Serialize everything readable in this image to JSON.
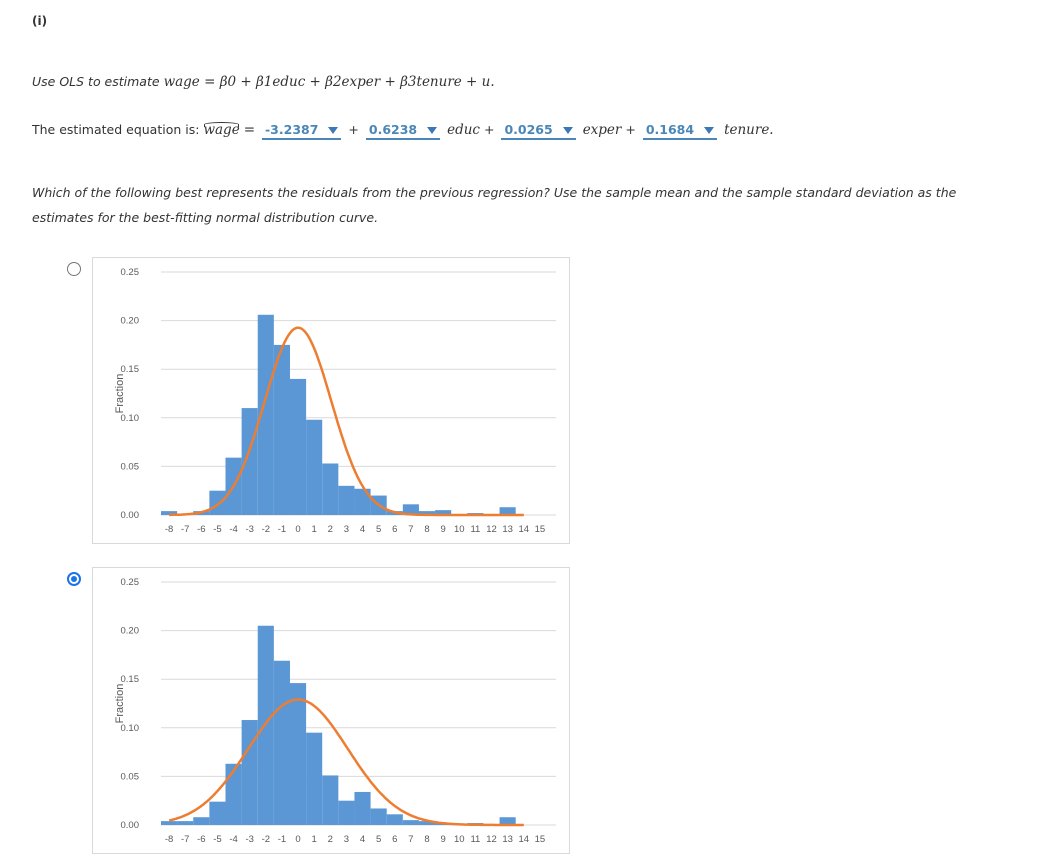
{
  "part_label": "(i)",
  "question1": {
    "prefix": "Use OLS to estimate",
    "equation": "wage = β0 + β1educ + β2exper + β3tenure + u."
  },
  "question2": {
    "prefix": "The estimated equation is:",
    "lhs": "wage",
    "equals": "=",
    "intercept": "-3.2387",
    "plus1": "+",
    "b_educ": "0.6238",
    "educ": "educ",
    "plus2": "+",
    "b_exper": "0.0265",
    "exper": "exper",
    "plus3": "+",
    "b_tenure": "0.1684",
    "tenure": "tenure."
  },
  "question3": "Which of the following best represents the residuals from the previous regression? Use the sample mean and the sample standard deviation as the estimates for the best-fitting normal distribution curve.",
  "colors": {
    "bar": "#5b97d5",
    "curve": "#ed7d31",
    "grid": "#d9d9d9",
    "dropdown": "#4a87b8"
  },
  "options": [
    {
      "selected": false,
      "chart_data": {
        "type": "bar",
        "ylabel": "Fraction",
        "ylim": [
          0,
          0.25
        ],
        "yticks": [
          "0.00",
          "0.05",
          "0.10",
          "0.15",
          "0.20",
          "0.25"
        ],
        "xticks": [
          "-8",
          "-7",
          "-6",
          "-5",
          "-4",
          "-3",
          "-2",
          "-1",
          "0",
          "1",
          "2",
          "3",
          "4",
          "5",
          "6",
          "7",
          "8",
          "9",
          "10",
          "11",
          "12",
          "13",
          "14",
          "15"
        ],
        "bin_start": -8,
        "bin_width": 1,
        "values": [
          0.004,
          0.0,
          0.004,
          0.025,
          0.059,
          0.11,
          0.206,
          0.175,
          0.14,
          0.098,
          0.053,
          0.03,
          0.027,
          0.02,
          0.004,
          0.011,
          0.004,
          0.005,
          0.0,
          0.002,
          0.0,
          0.008
        ],
        "normal_curve": {
          "mean": 0.0,
          "sd": 2.07,
          "scale": 1.0,
          "x_range": [
            -8,
            14
          ]
        },
        "grid": true,
        "legend": "none"
      }
    },
    {
      "selected": true,
      "chart_data": {
        "type": "bar",
        "ylabel": "Fraction",
        "ylim": [
          0,
          0.25
        ],
        "yticks": [
          "0.00",
          "0.05",
          "0.10",
          "0.15",
          "0.20",
          "0.25"
        ],
        "xticks": [
          "-8",
          "-7",
          "-6",
          "-5",
          "-4",
          "-3",
          "-2",
          "-1",
          "0",
          "1",
          "2",
          "3",
          "4",
          "5",
          "6",
          "7",
          "8",
          "9",
          "10",
          "11",
          "12",
          "13",
          "14",
          "15"
        ],
        "bin_start": -8,
        "bin_width": 1,
        "values": [
          0.004,
          0.004,
          0.008,
          0.024,
          0.063,
          0.108,
          0.205,
          0.169,
          0.146,
          0.095,
          0.051,
          0.025,
          0.034,
          0.017,
          0.011,
          0.005,
          0.004,
          0.002,
          0.0,
          0.002,
          0.0,
          0.008
        ],
        "normal_curve": {
          "mean": 0.0,
          "sd": 3.09,
          "scale": 1.0,
          "x_range": [
            -8,
            14
          ]
        },
        "grid": true,
        "legend": "none"
      }
    }
  ]
}
